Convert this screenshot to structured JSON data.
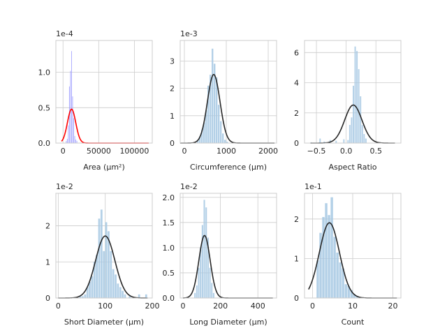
{
  "chart_data": [
    {
      "type": "histogram",
      "xlabel": "Area (µm²)",
      "offset_text": "1e-4",
      "xlim": [
        -10000,
        125000
      ],
      "ylim": [
        0,
        1.45
      ],
      "xticks": [
        0,
        50000,
        100000
      ],
      "xtick_labels": [
        "0",
        "50000",
        "100000"
      ],
      "yticks": [
        0,
        0.5,
        1.0
      ],
      "ytick_labels": [
        "0.0",
        "0.5",
        "1.0"
      ],
      "bar_color": "#9999ff",
      "curve_color": "#ff0000",
      "bins": [
        {
          "x0": 4000,
          "x1": 5500,
          "h": 0.03
        },
        {
          "x0": 5500,
          "x1": 7000,
          "h": 0.06
        },
        {
          "x0": 7000,
          "x1": 8500,
          "h": 0.25
        },
        {
          "x0": 8500,
          "x1": 10000,
          "h": 0.8
        },
        {
          "x0": 10000,
          "x1": 11500,
          "h": 1.02
        },
        {
          "x0": 11500,
          "x1": 13000,
          "h": 1.3
        },
        {
          "x0": 13000,
          "x1": 14500,
          "h": 0.66
        },
        {
          "x0": 14500,
          "x1": 16000,
          "h": 0.35
        },
        {
          "x0": 16000,
          "x1": 17500,
          "h": 0.1
        },
        {
          "x0": 17500,
          "x1": 19000,
          "h": 0.05
        },
        {
          "x0": 19000,
          "x1": 20500,
          "h": 0.03
        }
      ],
      "normal_fit": {
        "mean": 12000,
        "sd": 5800,
        "range": [
          -2000,
          120000
        ]
      }
    },
    {
      "type": "histogram",
      "xlabel": "Circumference (µm)",
      "offset_text": "1e-3",
      "xlim": [
        -100,
        2200
      ],
      "ylim": [
        0,
        3.75
      ],
      "xticks": [
        0,
        1000,
        2000
      ],
      "xtick_labels": [
        "0",
        "1000",
        "2000"
      ],
      "yticks": [
        0,
        1,
        2,
        3
      ],
      "ytick_labels": [
        "0",
        "1",
        "2",
        "3"
      ],
      "bar_color": "#a6c8e3",
      "curve_color": "#262626",
      "bins": [
        {
          "x0": 300,
          "x1": 350,
          "h": 0.1
        },
        {
          "x0": 350,
          "x1": 400,
          "h": 0.25
        },
        {
          "x0": 400,
          "x1": 450,
          "h": 0.5
        },
        {
          "x0": 450,
          "x1": 500,
          "h": 0.75
        },
        {
          "x0": 500,
          "x1": 550,
          "h": 1.2
        },
        {
          "x0": 550,
          "x1": 600,
          "h": 2.1
        },
        {
          "x0": 600,
          "x1": 650,
          "h": 2.5
        },
        {
          "x0": 650,
          "x1": 700,
          "h": 3.45
        },
        {
          "x0": 700,
          "x1": 750,
          "h": 2.9
        },
        {
          "x0": 750,
          "x1": 800,
          "h": 2.4
        },
        {
          "x0": 800,
          "x1": 850,
          "h": 1.4
        },
        {
          "x0": 850,
          "x1": 900,
          "h": 0.8
        },
        {
          "x0": 900,
          "x1": 950,
          "h": 0.35
        },
        {
          "x0": 950,
          "x1": 1000,
          "h": 0.12
        },
        {
          "x0": 1000,
          "x1": 1050,
          "h": 0.05
        }
      ],
      "normal_fit": {
        "mean": 700,
        "sd": 150,
        "range": [
          -100,
          2150
        ]
      }
    },
    {
      "type": "histogram",
      "xlabel": "Aspect Ratio",
      "offset_text": "",
      "xlim": [
        -0.7,
        0.92
      ],
      "ylim": [
        0,
        6.8
      ],
      "xticks": [
        -0.5,
        0.0,
        0.5
      ],
      "xtick_labels": [
        "−0.5",
        "0.0",
        "0.5"
      ],
      "yticks": [
        0,
        2,
        4,
        6
      ],
      "ytick_labels": [
        "0",
        "2",
        "4",
        "6"
      ],
      "bar_color": "#a6c8e3",
      "curve_color": "#262626",
      "bins": [
        {
          "x0": -0.6,
          "x1": -0.57,
          "h": 0.05
        },
        {
          "x0": -0.45,
          "x1": -0.42,
          "h": 0.3
        },
        {
          "x0": -0.38,
          "x1": -0.35,
          "h": 0.1
        },
        {
          "x0": -0.28,
          "x1": -0.25,
          "h": 0.2
        },
        {
          "x0": -0.18,
          "x1": -0.15,
          "h": 0.15
        },
        {
          "x0": -0.05,
          "x1": -0.02,
          "h": 0.25
        },
        {
          "x0": 0.02,
          "x1": 0.05,
          "h": 0.2
        },
        {
          "x0": 0.05,
          "x1": 0.08,
          "h": 1.2
        },
        {
          "x0": 0.08,
          "x1": 0.11,
          "h": 1.7
        },
        {
          "x0": 0.11,
          "x1": 0.14,
          "h": 3.8
        },
        {
          "x0": 0.14,
          "x1": 0.17,
          "h": 6.4
        },
        {
          "x0": 0.17,
          "x1": 0.2,
          "h": 6.1
        },
        {
          "x0": 0.2,
          "x1": 0.23,
          "h": 4.9
        },
        {
          "x0": 0.23,
          "x1": 0.26,
          "h": 3.1
        },
        {
          "x0": 0.26,
          "x1": 0.29,
          "h": 1.2
        },
        {
          "x0": 0.29,
          "x1": 0.32,
          "h": 0.6
        },
        {
          "x0": 0.32,
          "x1": 0.35,
          "h": 0.3
        }
      ],
      "normal_fit": {
        "mean": 0.12,
        "sd": 0.145,
        "range": [
          -0.6,
          0.82
        ]
      }
    },
    {
      "type": "histogram",
      "xlabel": "Short Diameter (µm)",
      "offset_text": "1e-2",
      "xlim": [
        -5,
        200
      ],
      "ylim": [
        0,
        2.9
      ],
      "xticks": [
        0,
        100,
        200
      ],
      "xtick_labels": [
        "0",
        "100",
        "200"
      ],
      "yticks": [
        0,
        1,
        2
      ],
      "ytick_labels": [
        "0",
        "1",
        "2"
      ],
      "bar_color": "#a6c8e3",
      "curve_color": "#262626",
      "bins": [
        {
          "x0": 45,
          "x1": 50,
          "h": 0.05
        },
        {
          "x0": 50,
          "x1": 55,
          "h": 0.05
        },
        {
          "x0": 55,
          "x1": 60,
          "h": 0.1
        },
        {
          "x0": 60,
          "x1": 65,
          "h": 0.3
        },
        {
          "x0": 65,
          "x1": 70,
          "h": 0.45
        },
        {
          "x0": 70,
          "x1": 75,
          "h": 0.6
        },
        {
          "x0": 75,
          "x1": 80,
          "h": 1.0
        },
        {
          "x0": 80,
          "x1": 85,
          "h": 1.2
        },
        {
          "x0": 85,
          "x1": 90,
          "h": 2.2
        },
        {
          "x0": 90,
          "x1": 95,
          "h": 2.45
        },
        {
          "x0": 95,
          "x1": 100,
          "h": 1.3
        },
        {
          "x0": 100,
          "x1": 105,
          "h": 2.1
        },
        {
          "x0": 105,
          "x1": 110,
          "h": 1.85
        },
        {
          "x0": 110,
          "x1": 115,
          "h": 1.3
        },
        {
          "x0": 115,
          "x1": 120,
          "h": 0.8
        },
        {
          "x0": 120,
          "x1": 125,
          "h": 0.65
        },
        {
          "x0": 125,
          "x1": 130,
          "h": 0.4
        },
        {
          "x0": 130,
          "x1": 135,
          "h": 0.3
        },
        {
          "x0": 135,
          "x1": 140,
          "h": 0.2
        },
        {
          "x0": 140,
          "x1": 145,
          "h": 0.1
        },
        {
          "x0": 150,
          "x1": 155,
          "h": 0.05
        },
        {
          "x0": 170,
          "x1": 175,
          "h": 0.1
        },
        {
          "x0": 185,
          "x1": 190,
          "h": 0.1
        }
      ],
      "normal_fit": {
        "mean": 100,
        "sd": 20.5,
        "range": [
          0,
          190
        ]
      }
    },
    {
      "type": "histogram",
      "xlabel": "Long Diameter (µm)",
      "offset_text": "1e-2",
      "xlim": [
        -15,
        500
      ],
      "ylim": [
        0,
        2.08
      ],
      "xticks": [
        0,
        200,
        400
      ],
      "xtick_labels": [
        "0",
        "200",
        "400"
      ],
      "yticks": [
        0,
        0.5,
        1.0,
        1.5,
        2.0
      ],
      "ytick_labels": [
        "0.0",
        "0.5",
        "1.0",
        "1.5",
        "2.0"
      ],
      "bar_color": "#a6c8e3",
      "curve_color": "#262626",
      "bins": [
        {
          "x0": 60,
          "x1": 70,
          "h": 0.1
        },
        {
          "x0": 70,
          "x1": 80,
          "h": 0.25
        },
        {
          "x0": 80,
          "x1": 90,
          "h": 0.6
        },
        {
          "x0": 90,
          "x1": 100,
          "h": 1.0
        },
        {
          "x0": 100,
          "x1": 110,
          "h": 1.45
        },
        {
          "x0": 110,
          "x1": 120,
          "h": 1.95
        },
        {
          "x0": 120,
          "x1": 130,
          "h": 1.8
        },
        {
          "x0": 130,
          "x1": 140,
          "h": 1.2
        },
        {
          "x0": 140,
          "x1": 150,
          "h": 0.6
        },
        {
          "x0": 150,
          "x1": 160,
          "h": 0.3
        },
        {
          "x0": 160,
          "x1": 170,
          "h": 0.1
        }
      ],
      "normal_fit": {
        "mean": 115,
        "sd": 30,
        "range": [
          0,
          480
        ]
      }
    },
    {
      "type": "histogram",
      "xlabel": "Count",
      "offset_text": "1e-1",
      "xlim": [
        -2,
        22
      ],
      "ylim": [
        0,
        2.65
      ],
      "xticks": [
        0,
        10,
        20
      ],
      "xtick_labels": [
        "0",
        "10",
        "20"
      ],
      "yticks": [
        0,
        1,
        2
      ],
      "ytick_labels": [
        "0",
        "1",
        "2"
      ],
      "bar_color": "#a6c8e3",
      "curve_color": "#262626",
      "bins": [
        {
          "x0": 1.0,
          "x1": 1.7,
          "h": 0.95
        },
        {
          "x0": 1.7,
          "x1": 2.4,
          "h": 1.65
        },
        {
          "x0": 2.4,
          "x1": 3.1,
          "h": 2.05
        },
        {
          "x0": 3.1,
          "x1": 3.8,
          "h": 2.4
        },
        {
          "x0": 3.8,
          "x1": 4.5,
          "h": 2.1
        },
        {
          "x0": 4.5,
          "x1": 5.2,
          "h": 2.55
        },
        {
          "x0": 5.2,
          "x1": 5.9,
          "h": 1.55
        },
        {
          "x0": 5.9,
          "x1": 6.6,
          "h": 1.15
        },
        {
          "x0": 6.6,
          "x1": 7.3,
          "h": 0.9
        },
        {
          "x0": 7.3,
          "x1": 8.0,
          "h": 0.75
        },
        {
          "x0": 8.0,
          "x1": 8.7,
          "h": 0.35
        },
        {
          "x0": 8.7,
          "x1": 9.4,
          "h": 0.3
        },
        {
          "x0": 9.4,
          "x1": 10.1,
          "h": 0.2
        },
        {
          "x0": 10.1,
          "x1": 10.8,
          "h": 0.1
        },
        {
          "x0": 10.8,
          "x1": 11.5,
          "h": 0.05
        }
      ],
      "normal_fit": {
        "mean": 4.2,
        "sd": 2.5,
        "range": [
          -1,
          21
        ]
      }
    }
  ]
}
